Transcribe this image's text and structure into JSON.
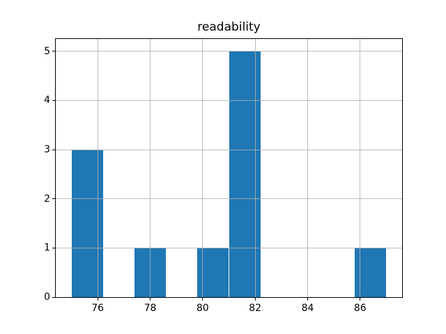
{
  "figure": {
    "background": "#ffffff"
  },
  "chart_data": {
    "type": "bar",
    "subtype": "histogram",
    "title": "readability",
    "xlabel": "",
    "ylabel": "",
    "bin_edges": [
      75.0,
      76.2,
      77.4,
      78.6,
      79.8,
      81.0,
      82.2,
      83.4,
      84.6,
      85.8,
      87.0
    ],
    "counts": [
      3,
      0,
      1,
      0,
      1,
      5,
      0,
      0,
      0,
      1
    ],
    "xlim": [
      74.4,
      87.6
    ],
    "ylim": [
      0,
      5.25
    ],
    "x_ticks": [
      76,
      78,
      80,
      82,
      84,
      86
    ],
    "y_ticks": [
      0,
      1,
      2,
      3,
      4,
      5
    ],
    "grid": true,
    "grid_above_bars": true,
    "legend_position": "none",
    "bar_color": "#1f77b4",
    "grid_color": "#b0b0b0",
    "spine_color": "#000000",
    "tick_color": "#000000",
    "text_color": "#000000"
  }
}
